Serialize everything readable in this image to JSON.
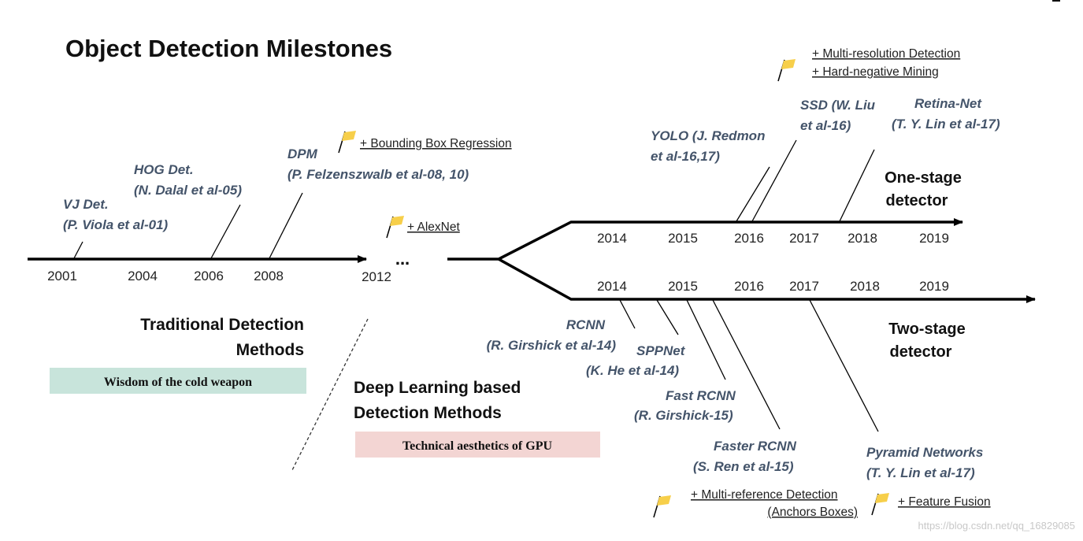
{
  "title": "Object Detection Milestones",
  "colors": {
    "detector_text": "#44546a",
    "traditional_tag_bg": "#c8e4db",
    "deep_tag_bg": "#f3d5d3",
    "flag_fill": "#f7cf4a"
  },
  "traditional": {
    "years": [
      "2001",
      "2004",
      "2006",
      "2008",
      "2012"
    ],
    "ellipsis": "...",
    "heading_line1": "Traditional Detection",
    "heading_line2": "Methods",
    "tagline": "Wisdom of the cold weapon",
    "detectors": [
      {
        "line1": "VJ Det.",
        "line2": "(P. Viola et al-01)"
      },
      {
        "line1": "HOG Det.",
        "line2": "(N. Dalal et al-05)"
      },
      {
        "line1": "DPM",
        "line2": "(P. Felzenszwalb et al-08, 10)"
      }
    ],
    "features": [
      "+ Bounding Box Regression",
      "+ AlexNet"
    ]
  },
  "deep": {
    "heading_line1": "Deep Learning based",
    "heading_line2": "Detection Methods",
    "tagline": "Technical aesthetics of GPU"
  },
  "one_stage": {
    "label_line1": "One-stage",
    "label_line2": "detector",
    "years": [
      "2014",
      "2015",
      "2016",
      "2017",
      "2018",
      "2019"
    ],
    "detectors": [
      {
        "line1": "YOLO (J. Redmon",
        "line2": "et al-16,17)"
      },
      {
        "line1": "SSD (W. Liu",
        "line2": "et al-16)"
      },
      {
        "line1": "Retina-Net",
        "line2": "(T. Y. Lin et al-17)"
      }
    ],
    "features": [
      "+ Multi-resolution Detection",
      "+ Hard-negative Mining"
    ]
  },
  "two_stage": {
    "label_line1": "Two-stage",
    "label_line2": "detector",
    "years": [
      "2014",
      "2015",
      "2016",
      "2017",
      "2018",
      "2019"
    ],
    "detectors": [
      {
        "line1": "RCNN",
        "line2": "(R. Girshick et al-14)"
      },
      {
        "line1": "SPPNet",
        "line2": "(K. He et al-14)"
      },
      {
        "line1": "Fast RCNN",
        "line2": "(R. Girshick-15)"
      },
      {
        "line1": "Faster RCNN",
        "line2": "(S. Ren et al-15)"
      },
      {
        "line1": "Pyramid Networks",
        "line2": "(T. Y. Lin et al-17)"
      }
    ],
    "features": [
      {
        "line1": "+ Multi-reference Detection",
        "line2": "(Anchors Boxes)"
      },
      {
        "line1": "+ Feature Fusion"
      }
    ]
  },
  "watermark": "https://blog.csdn.net/qq_16829085"
}
